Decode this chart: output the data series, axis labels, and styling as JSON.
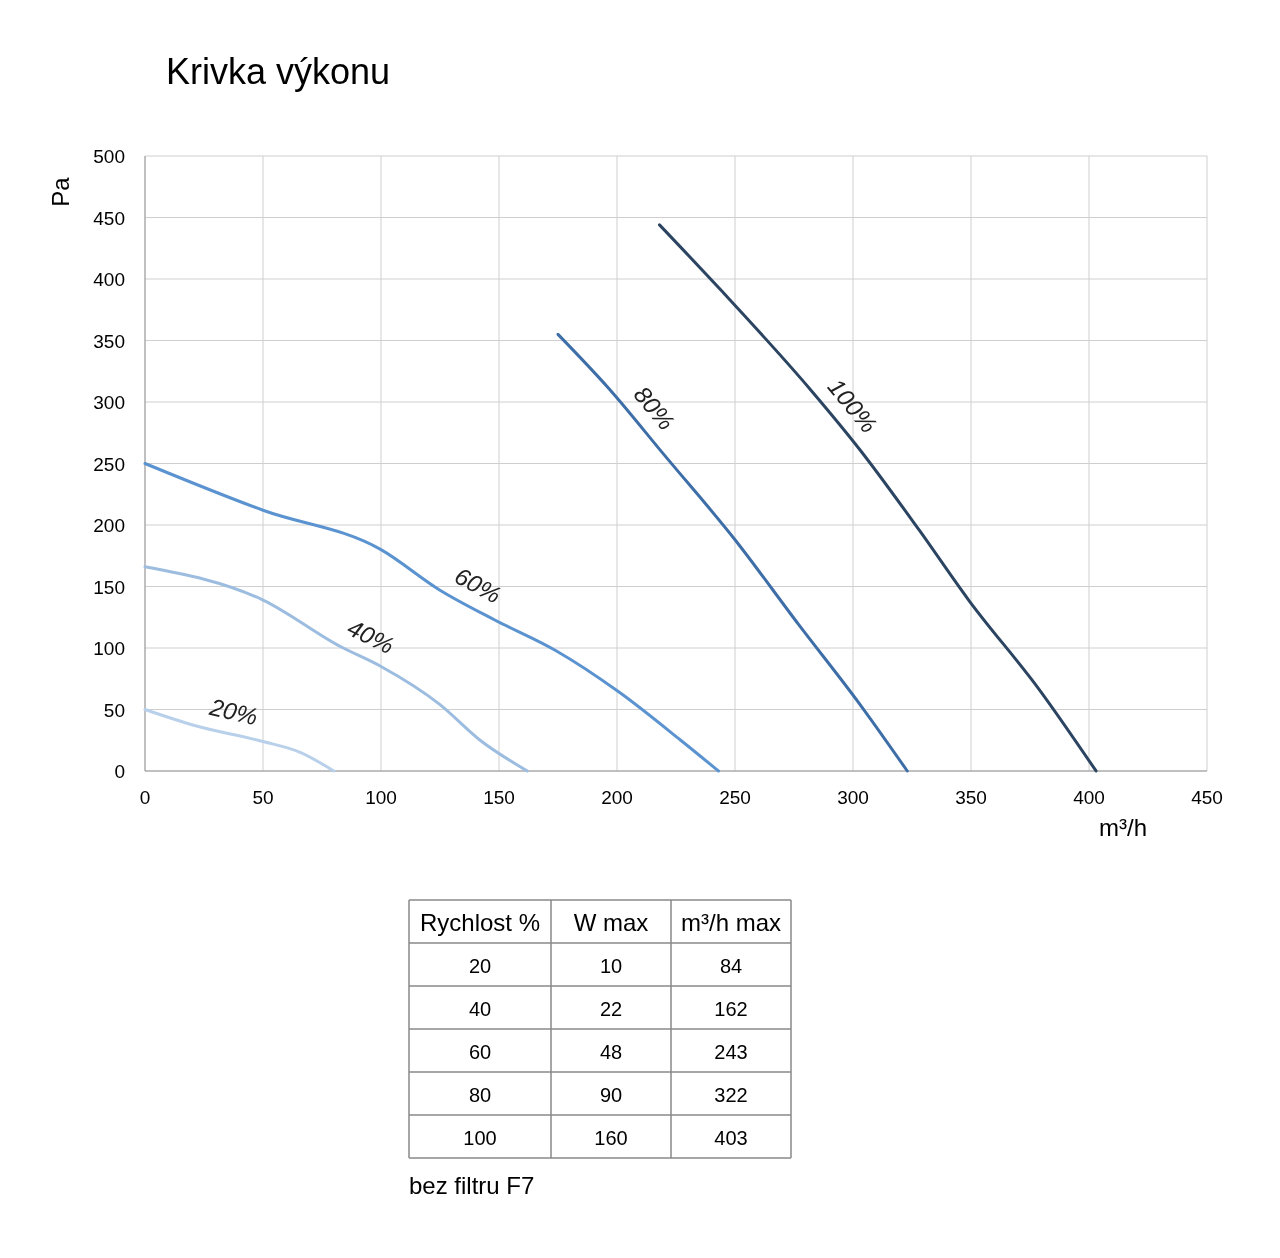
{
  "chart_data": [
    {
      "type": "line",
      "title": "Krivka výkonu",
      "xlabel": "m³/h",
      "ylabel": "Pa",
      "xlim": [
        0,
        450
      ],
      "xticks": [
        0,
        50,
        100,
        150,
        200,
        250,
        300,
        350,
        400,
        450
      ],
      "ylim": [
        0,
        500
      ],
      "yticks": [
        0,
        50,
        100,
        150,
        200,
        250,
        300,
        350,
        400,
        450,
        500
      ],
      "grid": true,
      "marker": "none",
      "line_style": "solid",
      "series": [
        {
          "name": "20%",
          "color": "#b8d0ea",
          "x": [
            0,
            21,
            50,
            66,
            80
          ],
          "values": [
            50,
            37,
            24,
            15,
            0
          ]
        },
        {
          "name": "40%",
          "color": "#9dbde0",
          "x": [
            0,
            50,
            83,
            100,
            125,
            142,
            162
          ],
          "values": [
            166,
            139,
            101,
            85,
            54,
            25,
            0
          ]
        },
        {
          "name": "60%",
          "color": "#5b93d0",
          "x": [
            0,
            50,
            100,
            125,
            148,
            174,
            201,
            227,
            243
          ],
          "values": [
            250,
            212,
            180,
            147,
            123,
            98,
            64,
            25,
            0
          ]
        },
        {
          "name": "80%",
          "color": "#3e6ea8",
          "x": [
            175,
            197,
            220,
            250,
            277,
            303,
            323
          ],
          "values": [
            355,
            310,
            257,
            188,
            119,
            54,
            0
          ]
        },
        {
          "name": "100%",
          "color": "#2b4461",
          "x": [
            218,
            244,
            282,
            303,
            328,
            349,
            379,
            403
          ],
          "values": [
            444,
            391,
            310,
            261,
            196,
            139,
            66,
            0
          ]
        }
      ]
    },
    {
      "type": "heatmap",
      "ylabel": "Rychlost %",
      "categories": [
        "W max",
        "m³/h max"
      ],
      "y_categories": [
        "20",
        "40",
        "60",
        "80",
        "100"
      ],
      "cells": [
        [
          10,
          84
        ],
        [
          22,
          162
        ],
        [
          48,
          243
        ],
        [
          90,
          322
        ],
        [
          160,
          403
        ]
      ],
      "data_labels": true,
      "annotations": [
        "bez filtru F7"
      ]
    }
  ]
}
